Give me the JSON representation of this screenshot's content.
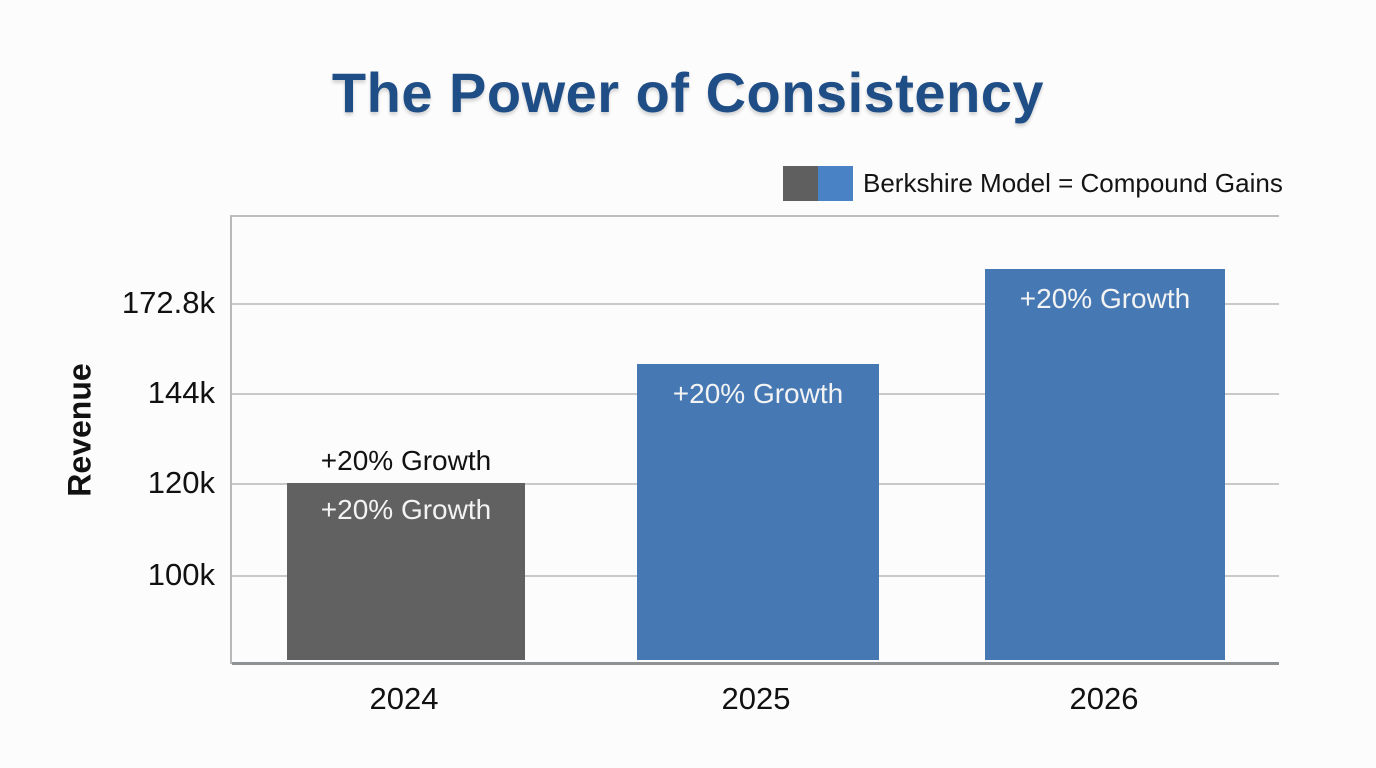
{
  "title": "The Power of Consistency",
  "colors": {
    "title_blue": "#1f4e87",
    "bar_gray": "#616161",
    "bar_blue": "#4679b4",
    "legend_gray": "#5f5f5f",
    "legend_blue": "#4a83c5"
  },
  "legend": {
    "label": "Berkshire Model = Compound Gains"
  },
  "chart_data": {
    "type": "bar",
    "title": "The Power of Consistency",
    "xlabel": "",
    "ylabel": "Revenue",
    "categories": [
      "2024",
      "2025",
      "2026"
    ],
    "series": [
      {
        "name": "Berkshire Model = Compound Gains",
        "values": [
          120000,
          144000,
          172800
        ],
        "bar_colors": [
          "#616161",
          "#4679b4",
          "#4679b4"
        ]
      }
    ],
    "annotations": {
      "bar_2024_above": "+20% Growth",
      "bar_2024_inside": "+20% Growth",
      "bar_2025_inside": "+20% Growth",
      "bar_2026_inside": "+20% Growth"
    },
    "yticks": [
      "100k",
      "120k",
      "144k",
      "172.8k"
    ],
    "ytick_values": [
      100000,
      120000,
      144000,
      172800
    ],
    "axis_note": "gridline steps are +20% compounding (100k, 120k, 144k, 172.8k)",
    "grid": "horizontal gridlines on, top and left plot border, no right border",
    "legend_position": "top-right above plot"
  }
}
